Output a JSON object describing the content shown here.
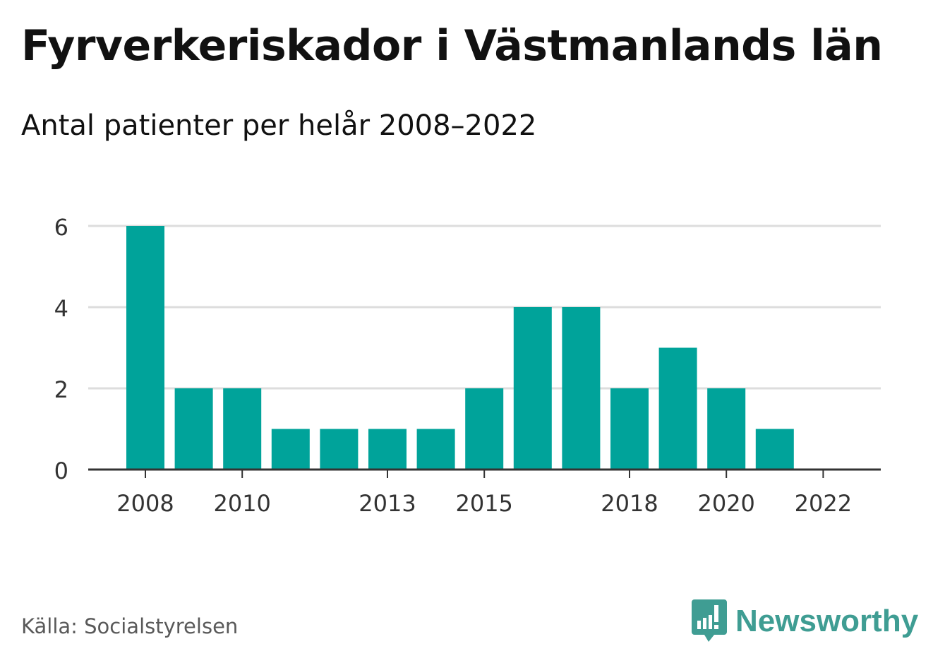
{
  "header": {
    "title": "Fyrverkeriskador i Västmanlands län",
    "subtitle": "Antal patienter per helår 2008–2022"
  },
  "footer": {
    "source": "Källa: Socialstyrelsen",
    "brand": "Newsworthy",
    "brand_icon": "bar-chart-speech-icon"
  },
  "colors": {
    "bar": "#00a39a",
    "grid": "#dddddd",
    "axis": "#333333",
    "brand": "#3f9d93"
  },
  "chart_data": {
    "type": "bar",
    "categories": [
      "2008",
      "2009",
      "2010",
      "2011",
      "2012",
      "2013",
      "2014",
      "2015",
      "2016",
      "2017",
      "2018",
      "2019",
      "2020",
      "2021",
      "2022"
    ],
    "values": [
      6,
      2,
      2,
      1,
      1,
      1,
      1,
      2,
      4,
      4,
      2,
      3,
      2,
      1,
      0
    ],
    "x_tick_labels": [
      "2008",
      "2010",
      "2013",
      "2015",
      "2018",
      "2020",
      "2022"
    ],
    "y_ticks": [
      0,
      2,
      4,
      6
    ],
    "ylim": [
      0,
      6
    ],
    "title": "Fyrverkeriskador i Västmanlands län",
    "subtitle": "Antal patienter per helår 2008–2022",
    "xlabel": "",
    "ylabel": "",
    "grid": true,
    "legend": "none"
  }
}
